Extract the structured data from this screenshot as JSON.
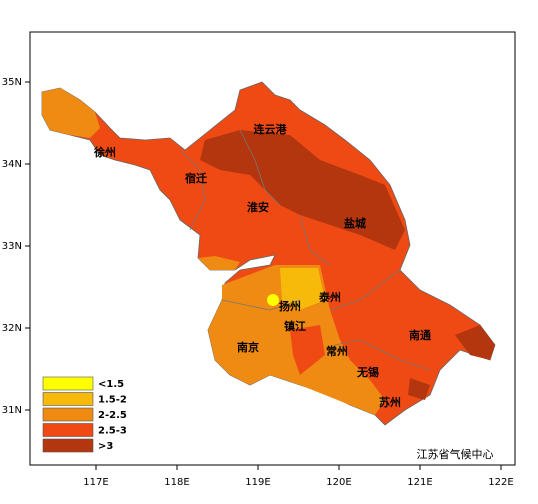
{
  "map": {
    "lon_ticks": [
      {
        "value": 117,
        "label": "117E"
      },
      {
        "value": 118,
        "label": "118E"
      },
      {
        "value": 119,
        "label": "119E"
      },
      {
        "value": 120,
        "label": "120E"
      },
      {
        "value": 121,
        "label": "121E"
      },
      {
        "value": 122,
        "label": "122E"
      }
    ],
    "lat_ticks": [
      {
        "value": 35,
        "label": "35N"
      },
      {
        "value": 34,
        "label": "34N"
      },
      {
        "value": 33,
        "label": "33N"
      },
      {
        "value": 32,
        "label": "32N"
      },
      {
        "value": 31,
        "label": "31N"
      }
    ],
    "cities": [
      "连云港",
      "徐州",
      "宿迁",
      "淮安",
      "盐城",
      "扬州",
      "泰州",
      "镇江",
      "南京",
      "常州",
      "南通",
      "无锡",
      "苏州"
    ],
    "legend": [
      {
        "label": "<1.5",
        "color": "#ffff00"
      },
      {
        "label": "1.5-2",
        "color": "#f7b90a"
      },
      {
        "label": "2-2.5",
        "color": "#ef8a12"
      },
      {
        "label": "2.5-3",
        "color": "#f04a14"
      },
      {
        "label": ">3",
        "color": "#b3360f"
      }
    ],
    "credit": "江苏省气候中心"
  }
}
